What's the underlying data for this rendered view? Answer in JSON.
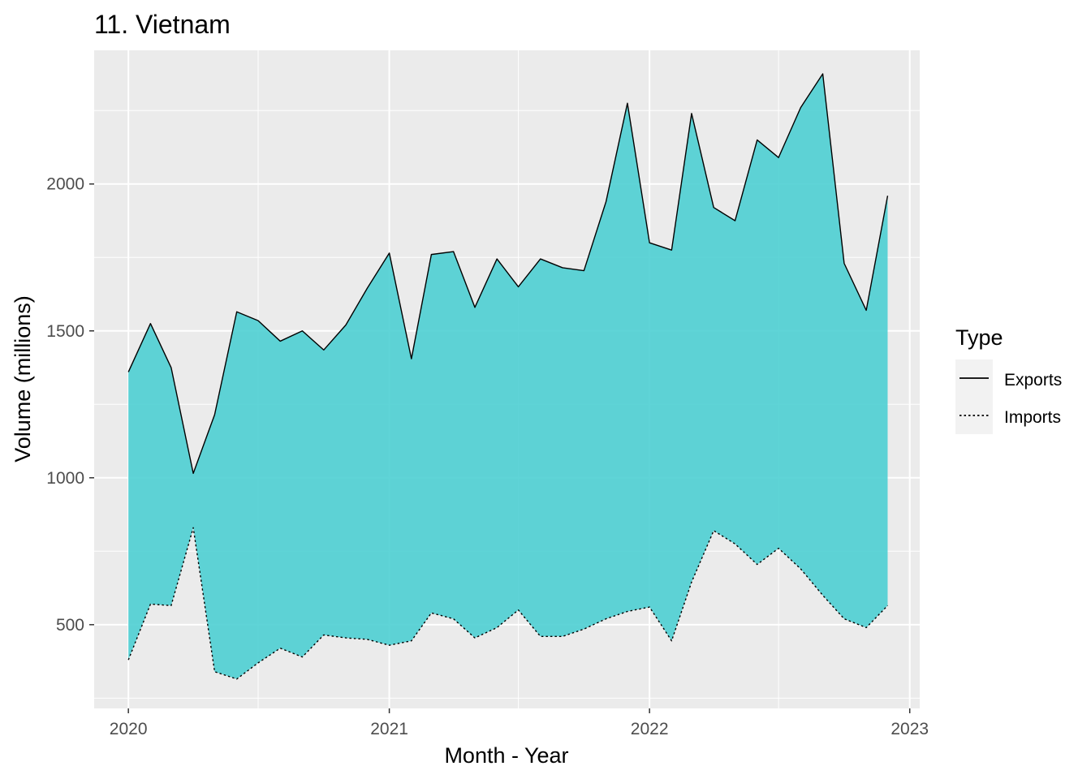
{
  "chart_data": {
    "type": "area",
    "title": "11. Vietnam",
    "xlabel": "Month - Year",
    "ylabel": "Volume (millions)",
    "x_ticks": [
      "2020",
      "2021",
      "2022",
      "2023"
    ],
    "y_ticks": [
      500,
      1000,
      1500,
      2000
    ],
    "ylim": [
      215,
      2455
    ],
    "xlim": [
      "2019-11-14",
      "2023-01-15"
    ],
    "grid": true,
    "fill_color": "#4ecfd3",
    "panel_color": "#ebebeb",
    "legend": {
      "title": "Type",
      "placement": "right",
      "entries": [
        {
          "label": "Exports",
          "linetype": "solid"
        },
        {
          "label": "Imports",
          "linetype": "dotted"
        }
      ]
    },
    "x": [
      "2020-01",
      "2020-02",
      "2020-03",
      "2020-04",
      "2020-05",
      "2020-06",
      "2020-07",
      "2020-08",
      "2020-09",
      "2020-10",
      "2020-11",
      "2020-12",
      "2021-01",
      "2021-02",
      "2021-03",
      "2021-04",
      "2021-05",
      "2021-06",
      "2021-07",
      "2021-08",
      "2021-09",
      "2021-10",
      "2021-11",
      "2021-12",
      "2022-01",
      "2022-02",
      "2022-03",
      "2022-04",
      "2022-05",
      "2022-06",
      "2022-07",
      "2022-08",
      "2022-09",
      "2022-10",
      "2022-11",
      "2022-12"
    ],
    "series": [
      {
        "name": "Exports",
        "values": [
          1360,
          1525,
          1375,
          1015,
          1215,
          1565,
          1535,
          1465,
          1500,
          1435,
          1520,
          1645,
          1765,
          1405,
          1760,
          1770,
          1580,
          1745,
          1650,
          1745,
          1715,
          1705,
          1940,
          2275,
          1800,
          1775,
          2240,
          1920,
          1875,
          2150,
          2090,
          2260,
          2375,
          1730,
          1570,
          1960
        ]
      },
      {
        "name": "Imports",
        "values": [
          380,
          570,
          565,
          830,
          340,
          315,
          370,
          420,
          390,
          465,
          455,
          450,
          430,
          445,
          540,
          520,
          455,
          490,
          550,
          460,
          460,
          485,
          520,
          545,
          560,
          445,
          645,
          820,
          775,
          705,
          760,
          690,
          600,
          520,
          490,
          565
        ]
      }
    ]
  }
}
